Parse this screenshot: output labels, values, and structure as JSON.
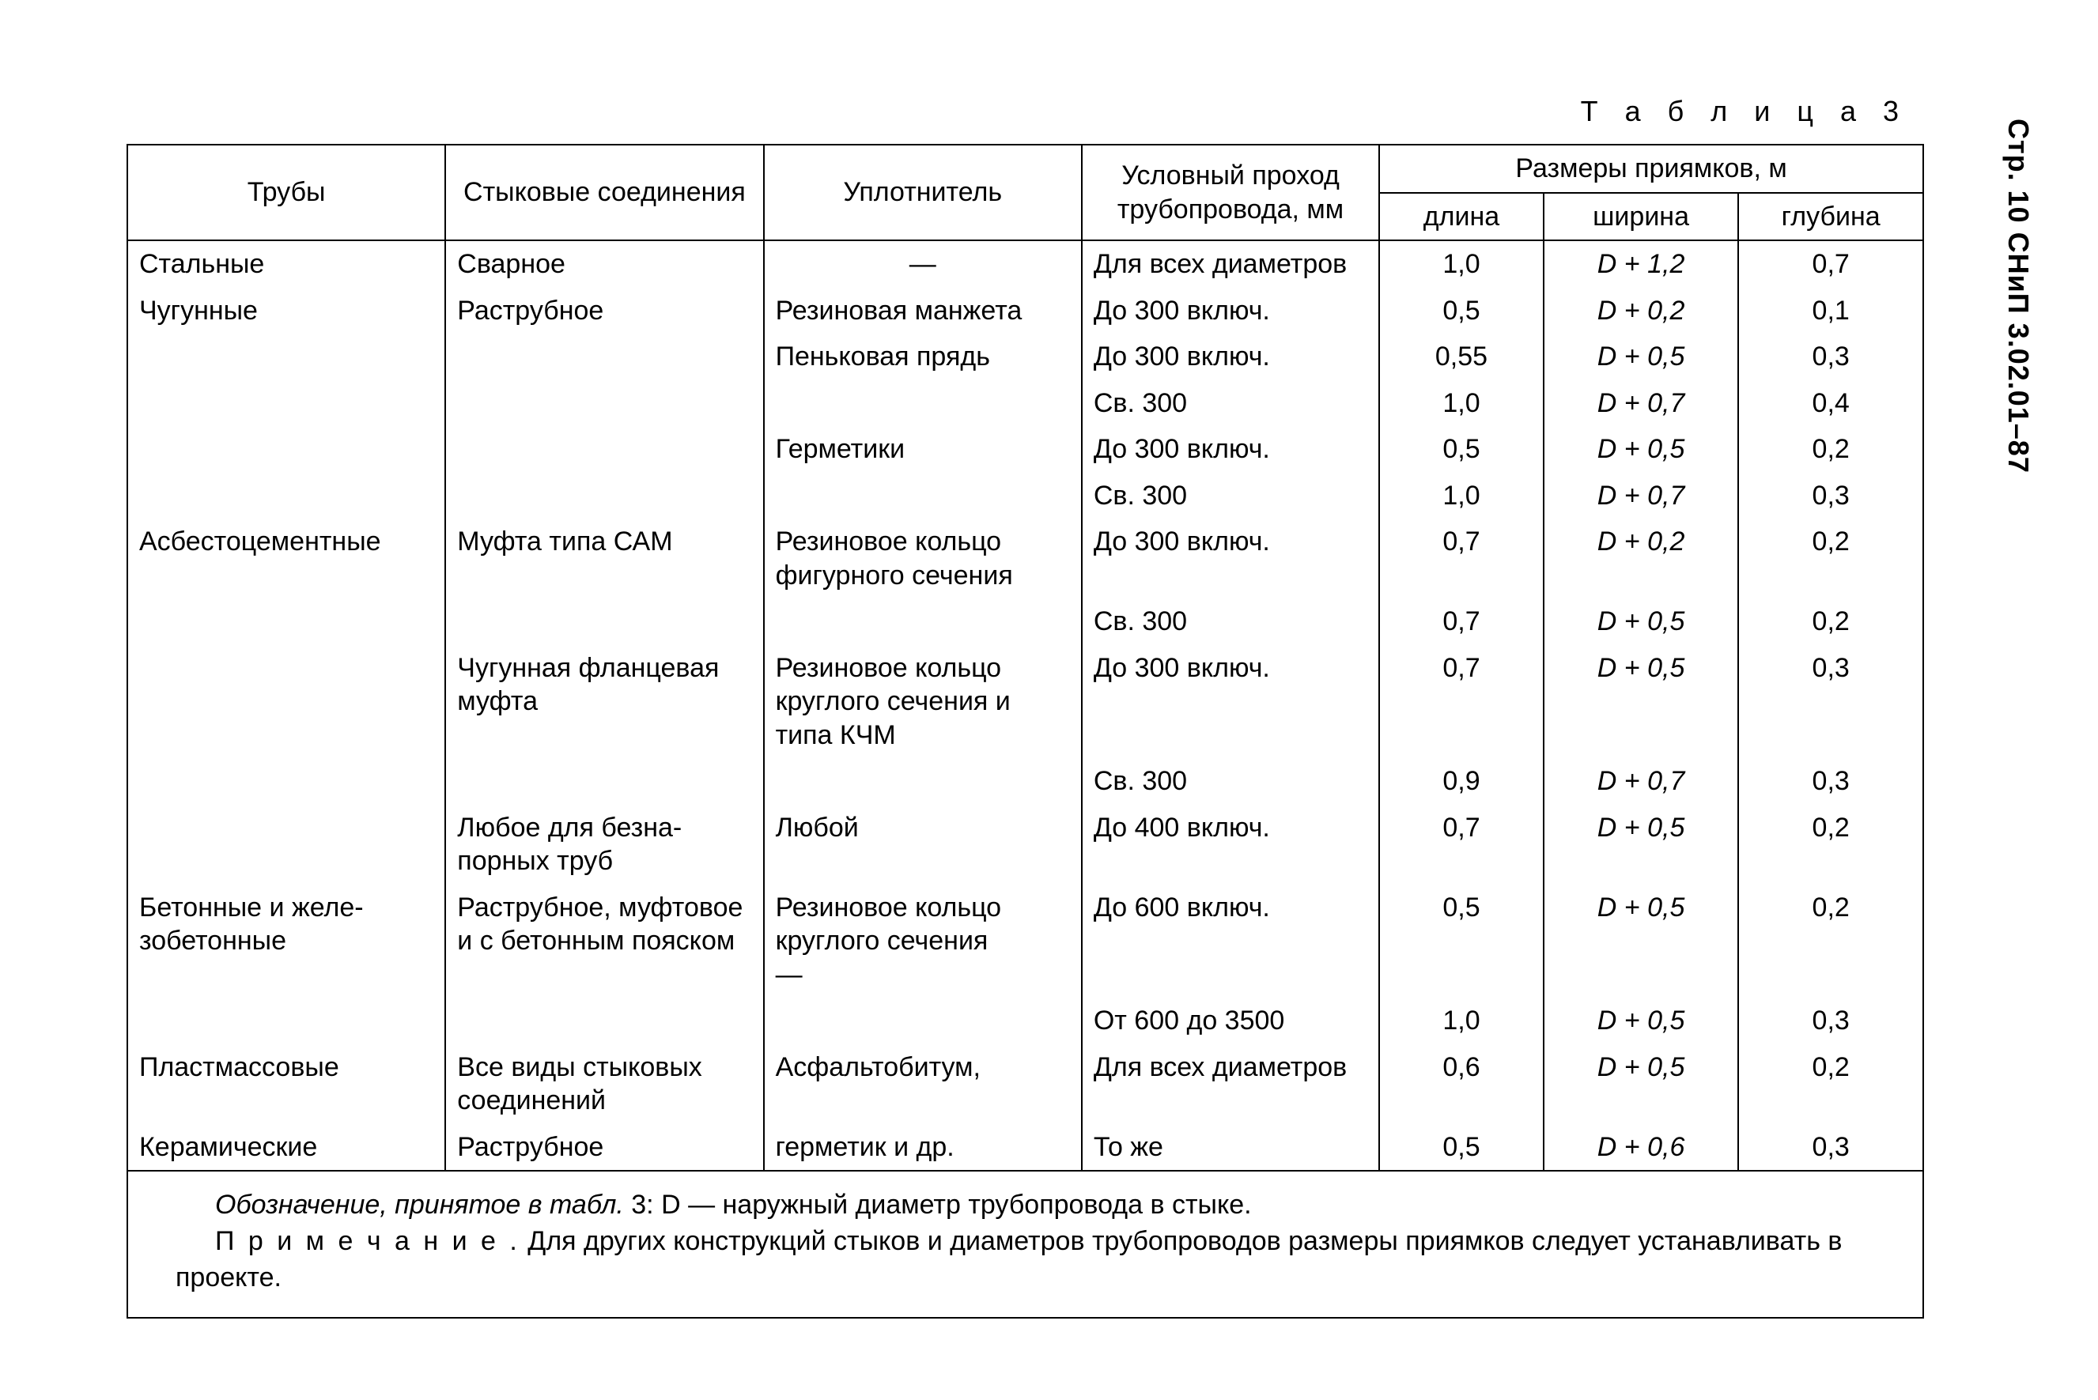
{
  "page_side_label": "Стр. 10 СНиП 3.02.01–87",
  "caption": "Т а б л и ц а 3",
  "headers": {
    "pipes": "Трубы",
    "joints": "Стыковые соеди­нения",
    "sealant": "Уплотнитель",
    "bore": "Условный проход трубоп­ровода, мм",
    "pits": "Размеры приямков, м",
    "length": "длина",
    "width": "ширина",
    "depth": "глубина"
  },
  "rows": [
    {
      "pipe": "Стальные",
      "joint": "Сварное",
      "sealant": "—",
      "bore": "Для всех диа­метров",
      "len": "1,0",
      "wid": "D + 1,2",
      "dep": "0,7"
    },
    {
      "pipe": "Чугунные",
      "joint": "Раструбное",
      "sealant": "Резиновая ман­жета",
      "bore": "До 300 включ.",
      "len": "0,5",
      "wid": "D + 0,2",
      "dep": "0,1"
    },
    {
      "pipe": "",
      "joint": "",
      "sealant": "Пеньковая прядь",
      "bore": "До 300 включ.",
      "len": "0,55",
      "wid": "D + 0,5",
      "dep": "0,3"
    },
    {
      "pipe": "",
      "joint": "",
      "sealant": "",
      "bore": "Св. 300",
      "len": "1,0",
      "wid": "D + 0,7",
      "dep": "0,4"
    },
    {
      "pipe": "",
      "joint": "",
      "sealant": "Герметики",
      "bore": "До 300 включ.",
      "len": "0,5",
      "wid": "D + 0,5",
      "dep": "0,2"
    },
    {
      "pipe": "",
      "joint": "",
      "sealant": "",
      "bore": "Св. 300",
      "len": "1,0",
      "wid": "D + 0,7",
      "dep": "0,3"
    },
    {
      "pipe": "Асбестоцемент­ные",
      "joint": "Муфта типа САМ",
      "sealant": "Резиновое кольцо фигурного сече­ния",
      "bore": "До 300 включ.",
      "len": "0,7",
      "wid": "D + 0,2",
      "dep": "0,2"
    },
    {
      "pipe": "",
      "joint": "",
      "sealant": "",
      "bore": "Св. 300",
      "len": "0,7",
      "wid": "D + 0,5",
      "dep": "0,2"
    },
    {
      "pipe": "",
      "joint": "Чугунная фланце­вая муфта",
      "sealant": "Резиновое кольцо круглого сечения и типа КЧМ",
      "bore": "До 300 включ.",
      "len": "0,7",
      "wid": "D + 0,5",
      "dep": "0,3"
    },
    {
      "pipe": "",
      "joint": "",
      "sealant": "",
      "bore": "Св. 300",
      "len": "0,9",
      "wid": "D + 0,7",
      "dep": "0,3"
    },
    {
      "pipe": "",
      "joint": "Любое для безна­порных труб",
      "sealant": "Любой",
      "bore": "До 400 включ.",
      "len": "0,7",
      "wid": "D + 0,5",
      "dep": "0,2"
    },
    {
      "pipe": "Бетонные и желе­зобетонные",
      "joint": "Раструбное, муф­товое и с бетон­ным пояском",
      "sealant": "Резиновое кольцо круглого сечения\n—",
      "bore": "До 600 включ.",
      "len": "0,5",
      "wid": "D + 0,5",
      "dep": "0,2"
    },
    {
      "pipe": "",
      "joint": "",
      "sealant": "",
      "bore": "От 600 до 3500",
      "len": "1,0",
      "wid": "D + 0,5",
      "dep": "0,3"
    },
    {
      "pipe": "Пластмассовые",
      "joint": "Все виды стыко­вых соединений",
      "sealant": "Асфальтобитум,",
      "bore": "Для всех диа­метров",
      "len": "0,6",
      "wid": "D + 0,5",
      "dep": "0,2"
    },
    {
      "pipe": "Керамические",
      "joint": "Раструбное",
      "sealant": "герметик и др.",
      "bore": "То же",
      "len": "0,5",
      "wid": "D + 0,6",
      "dep": "0,3"
    }
  ],
  "footnotes": {
    "def_prefix": "Обозначение, принятое в табл.",
    "def_rest": " 3: D — наружный диаметр трубопровода в стыке.",
    "note_label": "П р и м е ч а н и е .",
    "note_rest": " Для других конструкций стыков и диаметров трубопроводов размеры приямков следует устанавливать в проекте."
  }
}
